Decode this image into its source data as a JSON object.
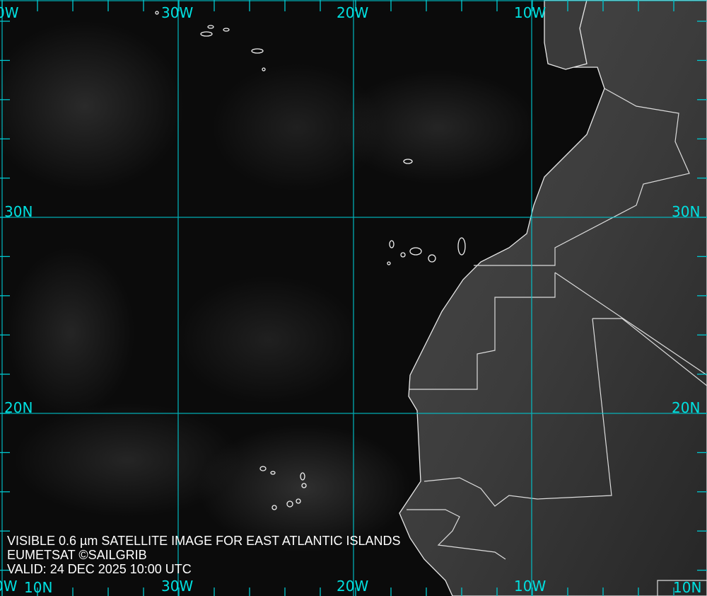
{
  "title_line": "VISIBLE 0.6 µm SATELLITE IMAGE FOR EAST ATLANTIC ISLANDS",
  "credit_line": "EUMETSAT ©SAILGRIB",
  "valid_line": "VALID:  24 DEC 2025 10:00 UTC",
  "grid": {
    "color": "#00c8d0",
    "top_labels": [
      "0W",
      "30W",
      "20W",
      "10W"
    ],
    "bottom_labels": [
      "0W",
      "10N",
      "30W",
      "20W",
      "10W",
      "10N"
    ],
    "left_labels": [
      "30N",
      "20N"
    ],
    "right_labels": [
      "30N",
      "20N"
    ]
  },
  "colors": {
    "ocean": "#0b0b0b",
    "land": "#3a3a3a",
    "coastline": "#e8e8e8",
    "label": "#00e0e0"
  }
}
